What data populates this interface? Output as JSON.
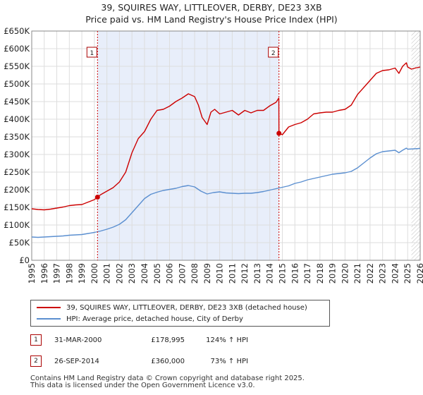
{
  "chart_data": {
    "type": "line",
    "title": "39, SQUIRES WAY, LITTLEOVER, DERBY, DE23 3XB",
    "subtitle": "Price paid vs. HM Land Registry's House Price Index (HPI)",
    "xlabel": "",
    "ylabel": "",
    "xlim": [
      1995,
      2026
    ],
    "ylim": [
      0,
      650000
    ],
    "y_ticks": [
      0,
      50000,
      100000,
      150000,
      200000,
      250000,
      300000,
      350000,
      400000,
      450000,
      500000,
      550000,
      600000,
      650000
    ],
    "y_tick_labels": [
      "£0",
      "£50K",
      "£100K",
      "£150K",
      "£200K",
      "£250K",
      "£300K",
      "£350K",
      "£400K",
      "£450K",
      "£500K",
      "£550K",
      "£600K",
      "£650K"
    ],
    "x_ticks": [
      1995,
      1996,
      1997,
      1998,
      1999,
      2000,
      2001,
      2002,
      2003,
      2004,
      2005,
      2006,
      2007,
      2008,
      2009,
      2010,
      2011,
      2012,
      2013,
      2014,
      2015,
      2016,
      2017,
      2018,
      2019,
      2020,
      2021,
      2022,
      2023,
      2024,
      2025,
      2026
    ],
    "x_tick_labels": [
      "1995",
      "1996",
      "1997",
      "1998",
      "1999",
      "2000",
      "2001",
      "2002",
      "2003",
      "2004",
      "2005",
      "2006",
      "2007",
      "2008",
      "2009",
      "2010",
      "2011",
      "2012",
      "2013",
      "2014",
      "2015",
      "2016",
      "2017",
      "2018",
      "2019",
      "2020",
      "2021",
      "2022",
      "2023",
      "2024",
      "2025",
      "2026"
    ],
    "grid": true,
    "shaded_period": [
      2000.25,
      2014.73
    ],
    "projection_start": 2025.3,
    "series": [
      {
        "name": "39, SQUIRES WAY, LITTLEOVER, DERBY, DE23 3XB (detached house)",
        "color": "#cc0000",
        "x": [
          1995,
          1995.5,
          1996,
          1996.5,
          1997,
          1997.5,
          1998,
          1998.5,
          1999,
          1999.5,
          2000,
          2000.25,
          2000.5,
          2001,
          2001.5,
          2002,
          2002.5,
          2003,
          2003.5,
          2004,
          2004.5,
          2005,
          2005.5,
          2006,
          2006.5,
          2007,
          2007.5,
          2008,
          2008.3,
          2008.6,
          2009,
          2009.3,
          2009.6,
          2010,
          2010.5,
          2011,
          2011.5,
          2012,
          2012.5,
          2013,
          2013.5,
          2014,
          2014.5,
          2014.72,
          2014.73,
          2014.9,
          2015,
          2015.5,
          2016,
          2016.5,
          2017,
          2017.5,
          2018,
          2018.5,
          2019,
          2019.5,
          2020,
          2020.5,
          2021,
          2021.5,
          2022,
          2022.5,
          2023,
          2023.5,
          2024,
          2024.3,
          2024.6,
          2024.9,
          2025,
          2025.3,
          2025.6,
          2026
        ],
        "values": [
          146000,
          144000,
          143000,
          145000,
          148000,
          151000,
          155000,
          157000,
          158000,
          165000,
          172000,
          178995,
          186000,
          196000,
          206000,
          222000,
          250000,
          305000,
          345000,
          365000,
          400000,
          425000,
          428000,
          437000,
          450000,
          460000,
          472000,
          464000,
          440000,
          405000,
          385000,
          420000,
          428000,
          415000,
          420000,
          425000,
          412000,
          425000,
          418000,
          425000,
          425000,
          438000,
          448000,
          460000,
          360000,
          358000,
          356000,
          378000,
          385000,
          390000,
          400000,
          415000,
          418000,
          420000,
          420000,
          425000,
          428000,
          440000,
          470000,
          490000,
          510000,
          530000,
          538000,
          540000,
          545000,
          530000,
          550000,
          560000,
          548000,
          542000,
          545000,
          548000
        ]
      },
      {
        "name": "HPI: Average price, detached house, City of Derby",
        "color": "#5b8fd0",
        "x": [
          1995,
          1995.5,
          1996,
          1996.5,
          1997,
          1997.5,
          1998,
          1998.5,
          1999,
          1999.5,
          2000,
          2000.5,
          2001,
          2001.5,
          2002,
          2002.5,
          2003,
          2003.5,
          2004,
          2004.5,
          2005,
          2005.5,
          2006,
          2006.5,
          2007,
          2007.5,
          2008,
          2008.5,
          2009,
          2009.5,
          2010,
          2010.5,
          2011,
          2011.5,
          2012,
          2012.5,
          2013,
          2013.5,
          2014,
          2014.5,
          2015,
          2015.5,
          2016,
          2016.5,
          2017,
          2017.5,
          2018,
          2018.5,
          2019,
          2019.5,
          2020,
          2020.5,
          2021,
          2021.5,
          2022,
          2022.5,
          2023,
          2023.5,
          2024,
          2024.3,
          2024.6,
          2024.9,
          2025,
          2025.5,
          2026
        ],
        "values": [
          66000,
          65000,
          66000,
          67000,
          68000,
          69000,
          71000,
          72000,
          73000,
          76000,
          79000,
          83000,
          88000,
          94000,
          102000,
          115000,
          135000,
          155000,
          175000,
          187000,
          193000,
          198000,
          201000,
          204000,
          209000,
          212000,
          208000,
          196000,
          188000,
          192000,
          194000,
          191000,
          190000,
          189000,
          190000,
          190000,
          192000,
          195000,
          199000,
          203000,
          207000,
          211000,
          218000,
          222000,
          228000,
          232000,
          236000,
          240000,
          244000,
          246000,
          248000,
          252000,
          262000,
          276000,
          290000,
          302000,
          308000,
          310000,
          312000,
          305000,
          312000,
          318000,
          315000,
          316000,
          317000
        ]
      }
    ],
    "markers": [
      {
        "label": "1",
        "x": 2000.25,
        "value": 178995,
        "badge_y": 590000
      },
      {
        "label": "2",
        "x": 2014.73,
        "value": 360000,
        "badge_y": 590000
      }
    ]
  },
  "legend": {
    "property_label": "39, SQUIRES WAY, LITTLEOVER, DERBY, DE23 3XB (detached house)",
    "hpi_label": "HPI: Average price, detached house, City of Derby"
  },
  "transactions": [
    {
      "num": "1",
      "date": "31-MAR-2000",
      "price": "£178,995",
      "hpi": "124% ↑ HPI"
    },
    {
      "num": "2",
      "date": "26-SEP-2014",
      "price": "£360,000",
      "hpi": "73% ↑ HPI"
    }
  ],
  "footer": {
    "line1": "Contains HM Land Registry data © Crown copyright and database right 2025.",
    "line2": "This data is licensed under the Open Government Licence v3.0."
  }
}
